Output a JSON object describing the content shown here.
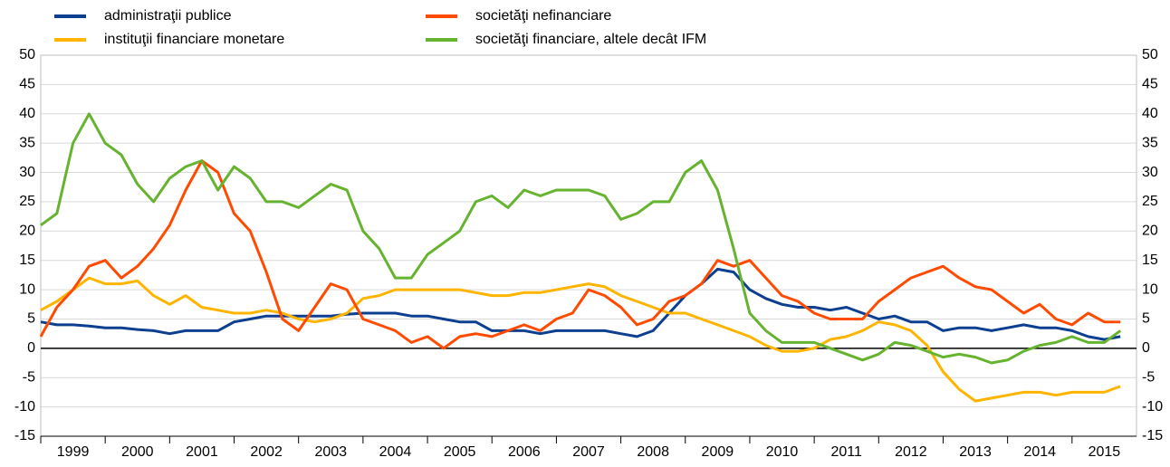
{
  "chart_data": {
    "type": "line",
    "x": [
      1999,
      1999.25,
      1999.5,
      1999.75,
      2000,
      2000.25,
      2000.5,
      2000.75,
      2001,
      2001.25,
      2001.5,
      2001.75,
      2002,
      2002.25,
      2002.5,
      2002.75,
      2003,
      2003.25,
      2003.5,
      2003.75,
      2004,
      2004.25,
      2004.5,
      2004.75,
      2005,
      2005.25,
      2005.5,
      2005.75,
      2006,
      2006.25,
      2006.5,
      2006.75,
      2007,
      2007.25,
      2007.5,
      2007.75,
      2008,
      2008.25,
      2008.5,
      2008.75,
      2009,
      2009.25,
      2009.5,
      2009.75,
      2010,
      2010.25,
      2010.5,
      2010.75,
      2011,
      2011.25,
      2011.5,
      2011.75,
      2012,
      2012.25,
      2012.5,
      2012.75,
      2013,
      2013.25,
      2013.5,
      2013.75,
      2014,
      2014.25,
      2014.5,
      2014.75,
      2015,
      2015.25,
      2015.5,
      2015.75
    ],
    "series": [
      {
        "name": "administraţii publice",
        "color": "#0c3f8f",
        "values": [
          4.5,
          4,
          4,
          3.8,
          3.5,
          3.5,
          3.2,
          3,
          2.5,
          3,
          3,
          3,
          4.5,
          5,
          5.5,
          5.5,
          5.5,
          5.5,
          5.5,
          5.8,
          6,
          6,
          6,
          5.5,
          5.5,
          5,
          4.5,
          4.5,
          3,
          3,
          3,
          2.5,
          3,
          3,
          3,
          3,
          2.5,
          2,
          3,
          6,
          9,
          11,
          13.5,
          13,
          10,
          8.5,
          7.5,
          7,
          7,
          6.5,
          7,
          6,
          5,
          5.5,
          4.5,
          4.5,
          3,
          3.5,
          3.5,
          3,
          3.5,
          4,
          3.5,
          3.5,
          3,
          2,
          1.5,
          2
        ]
      },
      {
        "name": "instituţii financiare monetare",
        "color": "#ffb400",
        "values": [
          6.5,
          8,
          10,
          12,
          11,
          11,
          11.5,
          9,
          7.5,
          9,
          7,
          6.5,
          6,
          6,
          6.5,
          6,
          5,
          4.5,
          5,
          6,
          8.5,
          9,
          10,
          10,
          10,
          10,
          10,
          9.5,
          9,
          9,
          9.5,
          9.5,
          10,
          10.5,
          11,
          10.5,
          9,
          8,
          7,
          6,
          6,
          5,
          4,
          3,
          2,
          0.5,
          -0.5,
          -0.5,
          0,
          1.5,
          2,
          3,
          4.5,
          4,
          3,
          0.5,
          -4,
          -7,
          -9,
          -8.5,
          -8,
          -7.5,
          -7.5,
          -8,
          -7.5,
          -7.5,
          -7.5,
          -6.5
        ]
      },
      {
        "name": "societăţi nefinanciare",
        "color": "#ff4b00",
        "values": [
          2,
          7,
          10,
          14,
          15,
          12,
          14,
          17,
          21,
          27,
          32,
          30,
          23,
          20,
          13,
          5,
          3,
          7,
          11,
          10,
          5,
          4,
          3,
          1,
          2,
          0,
          2,
          2.5,
          2,
          3,
          4,
          3,
          5,
          6,
          10,
          9,
          7,
          4,
          5,
          8,
          9,
          11,
          15,
          14,
          15,
          12,
          9,
          8,
          6,
          5,
          5,
          5,
          8,
          10,
          12,
          13,
          14,
          12,
          10.5,
          10,
          8,
          6,
          7.5,
          5,
          4,
          6,
          4.5,
          4.5
        ]
      },
      {
        "name": "societăţi financiare, altele decât IFM",
        "color": "#65b32e",
        "values": [
          21,
          23,
          35,
          40,
          35,
          33,
          28,
          25,
          29,
          31,
          32,
          27,
          31,
          29,
          25,
          25,
          24,
          26,
          28,
          27,
          20,
          17,
          12,
          12,
          16,
          18,
          20,
          25,
          26,
          24,
          27,
          26,
          27,
          27,
          27,
          26,
          22,
          23,
          25,
          25,
          30,
          32,
          27,
          17,
          6,
          3,
          1,
          1,
          1,
          0,
          -1,
          -2,
          -1,
          1,
          0.5,
          -0.5,
          -1.5,
          -1,
          -1.5,
          -2.5,
          -2,
          -0.5,
          0.5,
          1,
          2,
          1,
          1,
          3
        ]
      }
    ],
    "xlim": [
      1999,
      2016
    ],
    "xticks": [
      1999,
      2000,
      2001,
      2002,
      2003,
      2004,
      2005,
      2006,
      2007,
      2008,
      2009,
      2010,
      2011,
      2012,
      2013,
      2014,
      2015
    ],
    "ylim": [
      -15,
      50
    ],
    "yticks": [
      -15,
      -10,
      -5,
      0,
      5,
      10,
      15,
      20,
      25,
      30,
      35,
      40,
      45,
      50
    ],
    "y2lim": [
      -15,
      50
    ],
    "y2ticks": [
      -15,
      -10,
      -5,
      0,
      5,
      10,
      15,
      20,
      25,
      30,
      35,
      40,
      45,
      50
    ],
    "grid": true
  }
}
